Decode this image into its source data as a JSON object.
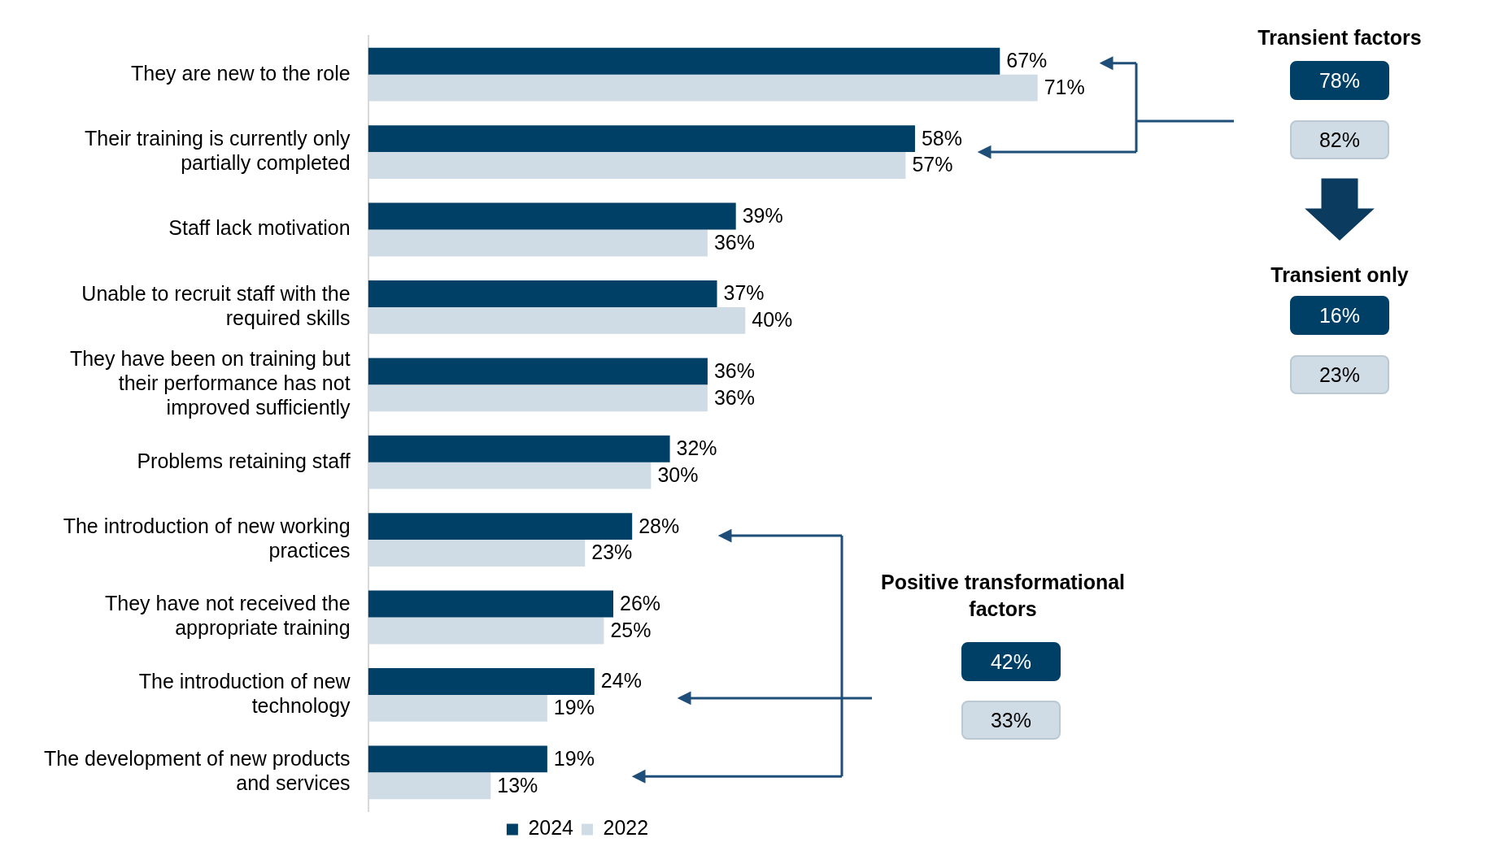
{
  "chart_data": {
    "type": "bar",
    "orientation": "horizontal",
    "categories": [
      "They are new to the role",
      "Their training is currently only partially completed",
      "Staff lack motivation",
      "Unable to recruit staff with the required skills",
      "They have been on training but their performance has not improved sufficiently",
      "Problems retaining staff",
      "The introduction of new working practices",
      "They have not received the appropriate training",
      "The introduction of new technology",
      "The development of new products and services"
    ],
    "series": [
      {
        "name": "2024",
        "color": "#003f66",
        "values": [
          67,
          58,
          39,
          37,
          36,
          32,
          28,
          26,
          24,
          19
        ],
        "value_labels": [
          "67%",
          "58%",
          "39%",
          "37%",
          "36%",
          "32%",
          "28%",
          "26%",
          "24%",
          "19%"
        ]
      },
      {
        "name": "2022",
        "color": "#d0dce5",
        "values": [
          71,
          57,
          36,
          40,
          36,
          30,
          23,
          25,
          19,
          13
        ],
        "value_labels": [
          "71%",
          "57%",
          "36%",
          "40%",
          "36%",
          "30%",
          "23%",
          "25%",
          "19%",
          "13%"
        ]
      }
    ],
    "legend": "bottom",
    "tick_labels": "y",
    "annotations": [
      "Transient factors",
      "78%",
      "82%",
      "Transient only",
      "16%",
      "23%",
      "Positive transformational factors",
      "42%",
      "33%"
    ]
  }
}
